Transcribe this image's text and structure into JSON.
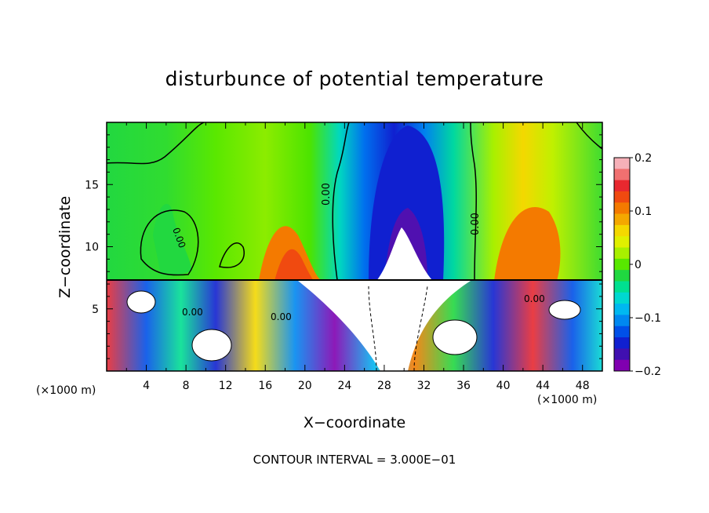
{
  "chart_data": {
    "type": "heatmap",
    "title": "disturbunce of potential temperature",
    "xlabel": "X−coordinate",
    "ylabel": "Z−coordinate",
    "x_unit": "(×1000 m)",
    "y_unit": "(×1000 m)",
    "xlim": [
      0,
      50
    ],
    "ylim": [
      0,
      20
    ],
    "x_ticks": [
      "4",
      "8",
      "12",
      "16",
      "20",
      "24",
      "28",
      "32",
      "36",
      "40",
      "44",
      "48"
    ],
    "y_ticks": [
      "5",
      "10",
      "15"
    ],
    "colorbar": {
      "range": [
        -0.2,
        0.2
      ],
      "tick_labels": [
        "0.2",
        "0.1",
        "0",
        "−0.1",
        "−0.2"
      ],
      "levels": [
        "#f6b0b8",
        "#f07070",
        "#e8282f",
        "#f04a10",
        "#f47a00",
        "#f4a800",
        "#f4d800",
        "#e0f000",
        "#a8f000",
        "#58e800",
        "#20d840",
        "#00e090",
        "#00d8d0",
        "#00b8f0",
        "#0088f0",
        "#0050e8",
        "#1020d0",
        "#4010b0",
        "#8000b0"
      ]
    },
    "contour_labels": [
      "0.00",
      "0.00",
      "0.00",
      "0.00",
      "0.00",
      "0.00"
    ],
    "contour_interval": "CONTOUR INTERVAL = 3.000E−01"
  }
}
